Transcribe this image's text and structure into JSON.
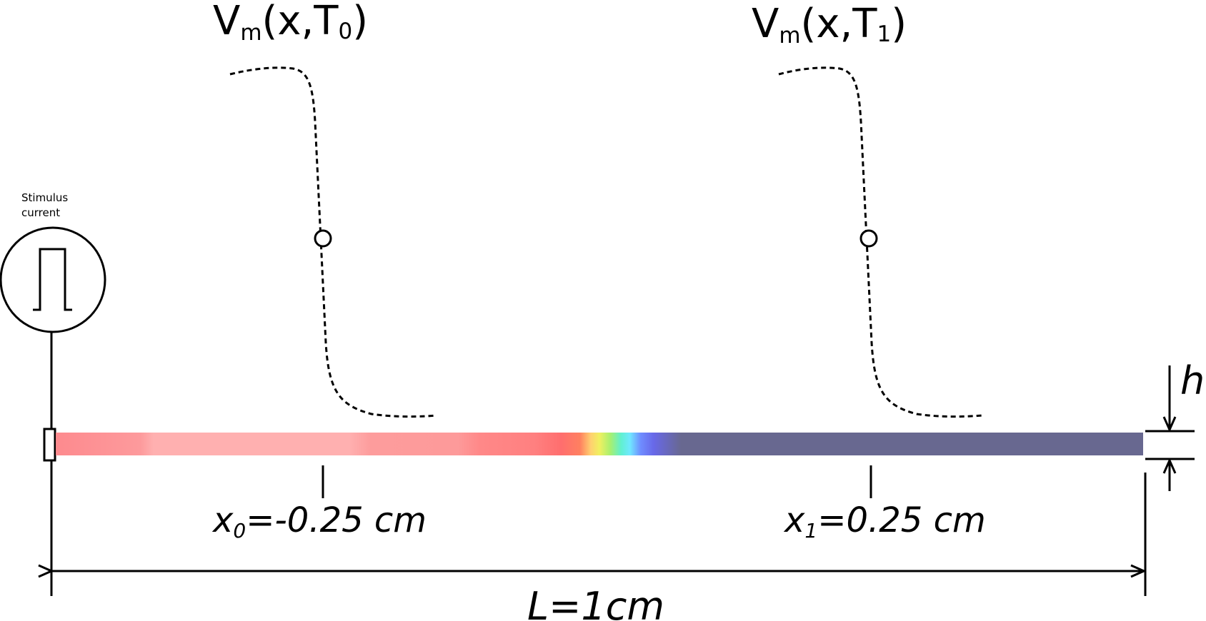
{
  "diagram": {
    "stimulus": {
      "label_line1": "Stimulus",
      "label_line2": "current"
    },
    "profile_t0": {
      "v": "V",
      "sub_m": "m",
      "args_open": "(x,T",
      "sub_t": "0",
      "args_close": ")"
    },
    "profile_t1": {
      "v": "V",
      "sub_m": "m",
      "args_open": "(x,T",
      "sub_t": "1",
      "args_close": ")"
    },
    "x0_label": {
      "x": "x",
      "sub": "0",
      "value": "=-0.25 cm"
    },
    "x1_label": {
      "x": "x",
      "sub": "1",
      "value": "=0.25 cm"
    },
    "length_label": "L=1cm",
    "height_label": "h",
    "colors": {
      "line": "#000000",
      "depolarized": "#ff8a8a",
      "wavefront_peak": "#ff6a6a",
      "resting": "#686890"
    }
  }
}
